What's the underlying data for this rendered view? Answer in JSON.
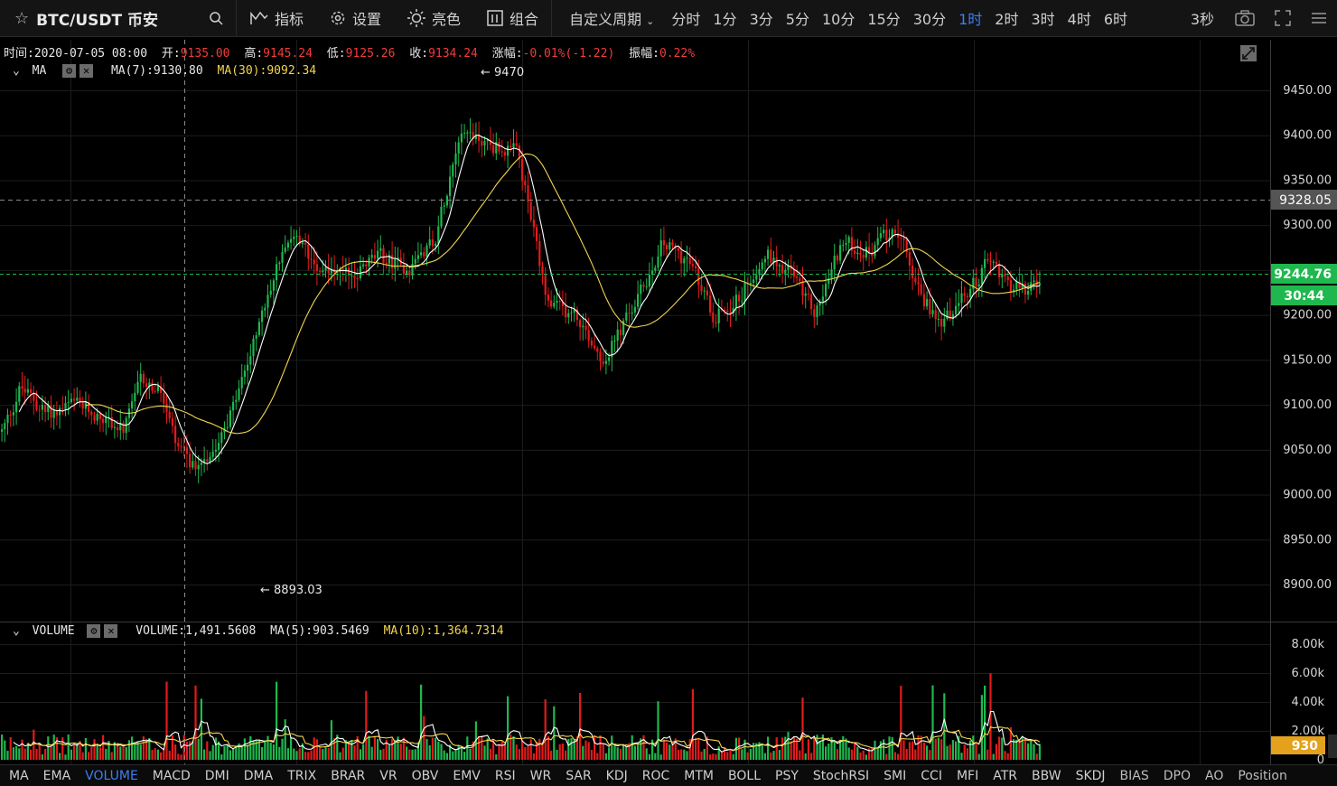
{
  "toolbar": {
    "symbol": "BTC/USDT 币安",
    "indicators_label": "指标",
    "settings_label": "设置",
    "theme_label": "亮色",
    "combo_label": "组合",
    "custom_period_label": "自定义周期",
    "periods": [
      "分时",
      "1分",
      "3分",
      "5分",
      "10分",
      "15分",
      "30分",
      "1时",
      "2时",
      "3时",
      "4时",
      "6时"
    ],
    "active_period": "1时",
    "refresh_label": "3秒"
  },
  "ohlc": {
    "time_label": "时间:",
    "time": "2020-07-05 08:00",
    "open_label": "开:",
    "open": "9135.00",
    "high_label": "高:",
    "high": "9145.24",
    "low_label": "低:",
    "low": "9125.26",
    "close_label": "收:",
    "close": "9134.24",
    "change_label": "涨幅:",
    "change": "-0.01%(-1.22)",
    "amplitude_label": "振幅:",
    "amplitude": "0.22%"
  },
  "ma_legend": {
    "name": "MA",
    "ma7": "MA(7):9130.80",
    "ma30": "MA(30):9092.34"
  },
  "volume_legend": {
    "name": "VOLUME",
    "volume": "VOLUME:1,491.5608",
    "ma5": "MA(5):903.5469",
    "ma10": "MA(10):1,364.7314"
  },
  "price_axis": {
    "ticks": [
      "9450.00",
      "9400.00",
      "9350.00",
      "9300.00",
      "9250.00",
      "9200.00",
      "9150.00",
      "9100.00",
      "9050.00",
      "9000.00",
      "8950.00",
      "8900.00"
    ],
    "tick_values": [
      9450,
      9400,
      9350,
      9300,
      9250,
      9200,
      9150,
      9100,
      9050,
      9000,
      8950,
      8900
    ],
    "crosshair_label": "9328.05",
    "last_price_label": "9244.76",
    "countdown_label": "30:44"
  },
  "volume_axis": {
    "ticks": [
      "8.00k",
      "6.00k",
      "4.00k",
      "2.00k",
      "0"
    ],
    "tick_values": [
      8000,
      6000,
      4000,
      2000,
      0
    ],
    "last_volume_label": "930"
  },
  "annotations": {
    "high_label": "9470",
    "low_label": "8893.03"
  },
  "colors": {
    "up": "#1fb84f",
    "down": "#e21b1b",
    "ma_fast": "#ffffff",
    "ma_slow": "#f3d54c",
    "accent": "#3f7ef0",
    "volume_tag": "#e3a11c"
  },
  "indicators": [
    "MA",
    "EMA",
    "VOLUME",
    "MACD",
    "DMI",
    "DMA",
    "TRIX",
    "BRAR",
    "VR",
    "OBV",
    "EMV",
    "RSI",
    "WR",
    "SAR",
    "KDJ",
    "ROC",
    "MTM",
    "BOLL",
    "PSY",
    "StochRSI",
    "SMI",
    "CCI",
    "MFI",
    "ATR",
    "BBW",
    "SKDJ",
    "BIAS",
    "DPO",
    "AO",
    "Position"
  ],
  "active_indicator": "VOLUME",
  "chart_data": {
    "type": "candlestick",
    "price_range": [
      8865,
      9485
    ],
    "volume_range": [
      0,
      8000
    ],
    "anchors": [
      [
        0,
        9070
      ],
      [
        6,
        9120
      ],
      [
        15,
        9090
      ],
      [
        25,
        9100
      ],
      [
        35,
        9085
      ],
      [
        42,
        9070
      ],
      [
        48,
        9130
      ],
      [
        55,
        9110
      ],
      [
        60,
        9050
      ],
      [
        66,
        9030
      ],
      [
        72,
        9050
      ],
      [
        80,
        9100
      ],
      [
        90,
        9200
      ],
      [
        98,
        9290
      ],
      [
        108,
        9260
      ],
      [
        118,
        9240
      ],
      [
        130,
        9265
      ],
      [
        140,
        9250
      ],
      [
        150,
        9290
      ],
      [
        158,
        9410
      ],
      [
        168,
        9390
      ],
      [
        178,
        9380
      ],
      [
        183,
        9300
      ],
      [
        188,
        9210
      ],
      [
        198,
        9200
      ],
      [
        208,
        9150
      ],
      [
        220,
        9220
      ],
      [
        228,
        9280
      ],
      [
        237,
        9260
      ],
      [
        246,
        9200
      ],
      [
        255,
        9220
      ],
      [
        263,
        9270
      ],
      [
        272,
        9250
      ],
      [
        281,
        9200
      ],
      [
        290,
        9280
      ],
      [
        300,
        9270
      ],
      [
        309,
        9300
      ],
      [
        316,
        9230
      ],
      [
        324,
        9190
      ],
      [
        333,
        9220
      ],
      [
        341,
        9260
      ],
      [
        350,
        9230
      ],
      [
        360,
        9230
      ]
    ]
  }
}
